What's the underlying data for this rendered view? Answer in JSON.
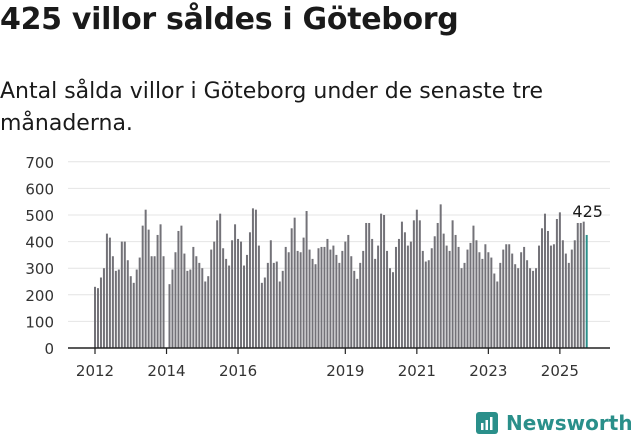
{
  "title": "425 villor såldes i Göteborg",
  "subtitle": "Antal sålda villor i Göteborg under de senaste tre månaderna.",
  "brand": {
    "name": "Newsworthy",
    "icon": "newsworthy-logo-icon",
    "color": "#2a8f8a"
  },
  "chart_data": {
    "type": "bar",
    "title": "",
    "xlabel": "",
    "ylabel": "",
    "ylim": [
      0,
      700
    ],
    "yticks": [
      "0",
      "100",
      "200",
      "300",
      "400",
      "500",
      "600",
      "700"
    ],
    "xticks": [
      {
        "label": "2012",
        "index": 0
      },
      {
        "label": "2014",
        "index": 24
      },
      {
        "label": "2016",
        "index": 48
      },
      {
        "label": "2019",
        "index": 84
      },
      {
        "label": "2021",
        "index": 108
      },
      {
        "label": "2023",
        "index": 132
      },
      {
        "label": "2025",
        "index": 156
      }
    ],
    "bar_color": "#737278",
    "highlight_color": "#2a8f8a",
    "highlight_label": "425",
    "grid": true,
    "legend": "none",
    "values": [
      230,
      225,
      265,
      300,
      430,
      415,
      345,
      290,
      295,
      400,
      400,
      330,
      270,
      245,
      295,
      340,
      460,
      520,
      445,
      345,
      345,
      425,
      465,
      345,
      0,
      240,
      295,
      360,
      440,
      460,
      355,
      290,
      295,
      380,
      345,
      320,
      300,
      250,
      270,
      370,
      400,
      480,
      505,
      375,
      335,
      310,
      405,
      465,
      410,
      400,
      310,
      350,
      435,
      525,
      520,
      385,
      245,
      265,
      320,
      405,
      320,
      325,
      250,
      290,
      380,
      360,
      450,
      490,
      365,
      360,
      415,
      515,
      370,
      335,
      315,
      375,
      380,
      380,
      410,
      370,
      385,
      350,
      320,
      365,
      400,
      425,
      345,
      290,
      260,
      320,
      365,
      470,
      470,
      410,
      335,
      385,
      505,
      500,
      365,
      300,
      285,
      380,
      410,
      475,
      435,
      385,
      400,
      480,
      520,
      480,
      365,
      325,
      330,
      375,
      420,
      470,
      540,
      430,
      385,
      365,
      480,
      425,
      380,
      300,
      320,
      370,
      395,
      460,
      405,
      360,
      335,
      390,
      360,
      340,
      280,
      250,
      320,
      370,
      390,
      390,
      355,
      315,
      300,
      360,
      380,
      330,
      300,
      290,
      300,
      385,
      450,
      505,
      440,
      385,
      390,
      485,
      510,
      405,
      355,
      320,
      370,
      405,
      470,
      470,
      475,
      425
    ]
  }
}
